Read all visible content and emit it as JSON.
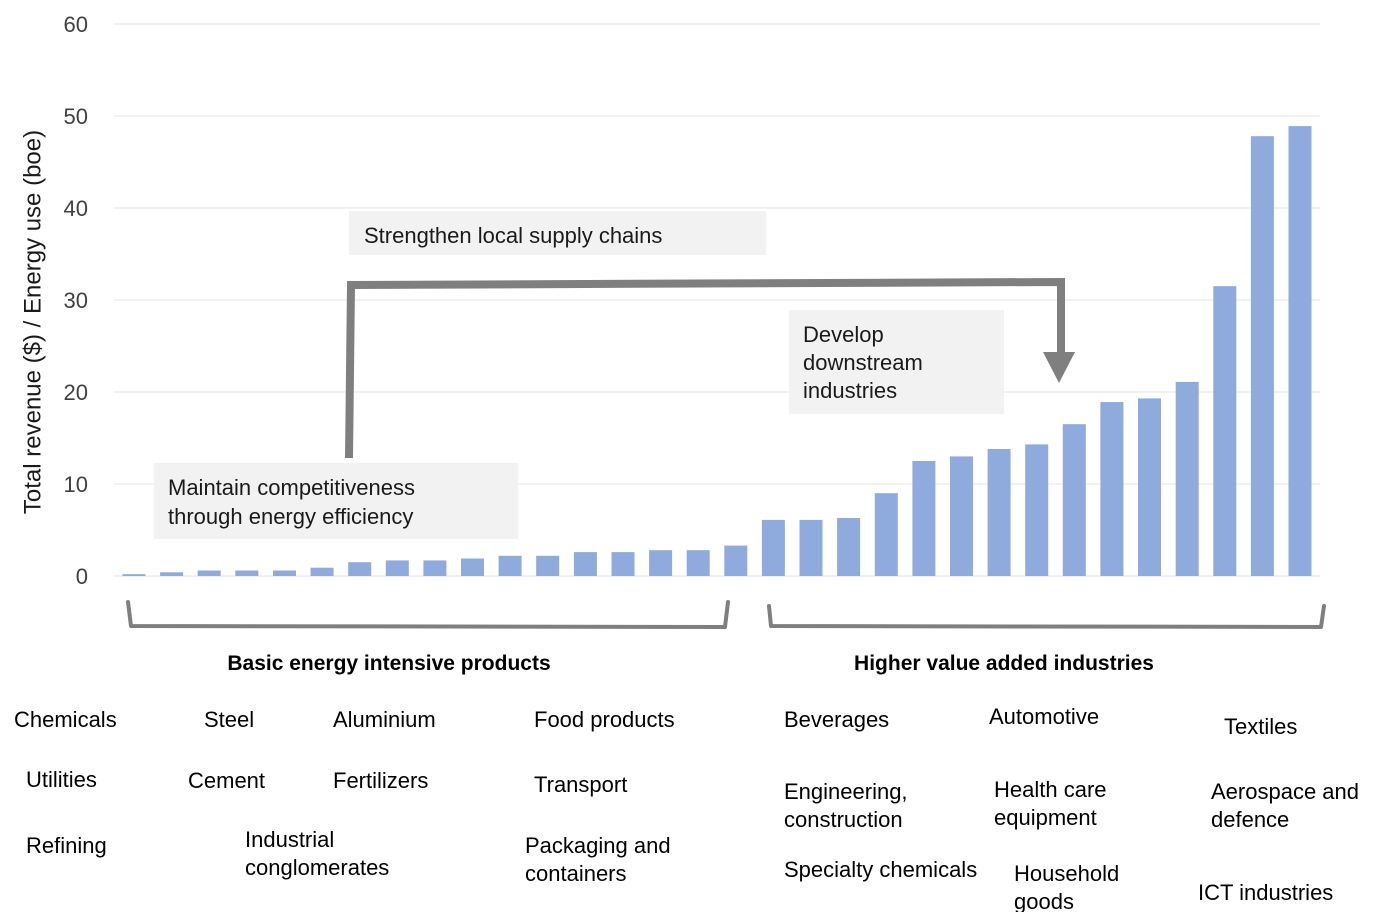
{
  "chart_data": {
    "type": "bar",
    "ylabel": "Total revenue ($) / Energy use (boe)",
    "ylim": [
      0,
      60
    ],
    "yticks": [
      0,
      10,
      20,
      30,
      40,
      50,
      60
    ],
    "grid": true,
    "series": [
      {
        "values": [
          0.2,
          0.4,
          0.6,
          0.6,
          0.6,
          0.9,
          1.5,
          1.7,
          1.7,
          1.9,
          2.2,
          2.2,
          2.6,
          2.6,
          2.8,
          2.8,
          3.3,
          6.1,
          6.1,
          6.3,
          9.0,
          12.5,
          13.0,
          13.8,
          14.3,
          16.5,
          18.9,
          19.3,
          21.1,
          31.5,
          47.8,
          48.9
        ]
      }
    ],
    "annotations": {
      "maintain": [
        "Maintain competitiveness",
        "through energy efficiency"
      ],
      "strengthen": "Strengthen local supply chains",
      "develop": [
        "Develop",
        "downstream",
        "industries"
      ]
    },
    "groups": {
      "basic": "Basic energy intensive products",
      "higher": "Higher value added industries"
    },
    "industries": [
      {
        "id": "chemicals",
        "lines": [
          "Chemicals"
        ]
      },
      {
        "id": "steel",
        "lines": [
          "Steel"
        ]
      },
      {
        "id": "aluminium",
        "lines": [
          "Aluminium"
        ]
      },
      {
        "id": "food-products",
        "lines": [
          "Food products"
        ]
      },
      {
        "id": "beverages",
        "lines": [
          "Beverages"
        ]
      },
      {
        "id": "automotive",
        "lines": [
          "Automotive"
        ]
      },
      {
        "id": "textiles",
        "lines": [
          "Textiles"
        ]
      },
      {
        "id": "utilities",
        "lines": [
          "Utilities"
        ]
      },
      {
        "id": "cement",
        "lines": [
          "Cement"
        ]
      },
      {
        "id": "fertilizers",
        "lines": [
          "Fertilizers"
        ]
      },
      {
        "id": "transport",
        "lines": [
          "Transport"
        ]
      },
      {
        "id": "engineering-construction",
        "lines": [
          "Engineering,",
          "construction"
        ]
      },
      {
        "id": "health-care-equipment",
        "lines": [
          "Health care",
          "equipment"
        ]
      },
      {
        "id": "aerospace-defence",
        "lines": [
          "Aerospace and",
          "defence"
        ]
      },
      {
        "id": "refining",
        "lines": [
          "Refining"
        ]
      },
      {
        "id": "industrial-conglomerates",
        "lines": [
          "Industrial",
          "conglomerates"
        ]
      },
      {
        "id": "packaging-containers",
        "lines": [
          "Packaging and",
          "containers"
        ]
      },
      {
        "id": "specialty-chemicals",
        "lines": [
          "Specialty chemicals"
        ]
      },
      {
        "id": "household-goods",
        "lines": [
          "Household",
          "goods"
        ]
      },
      {
        "id": "ict-industries",
        "lines": [
          "ICT industries"
        ]
      }
    ]
  }
}
